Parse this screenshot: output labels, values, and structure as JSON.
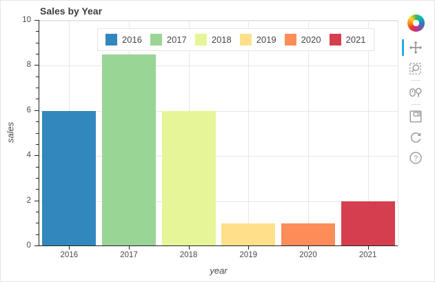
{
  "title": "Sales by Year",
  "chart_data": {
    "type": "bar",
    "title": "Sales by Year",
    "categories": [
      "2016",
      "2017",
      "2018",
      "2019",
      "2020",
      "2021"
    ],
    "values": [
      6,
      8.5,
      6,
      1,
      1,
      2
    ],
    "bar_colors": [
      "#3288bd",
      "#99d594",
      "#e6f598",
      "#fee08b",
      "#fc8d59",
      "#d53e4f"
    ],
    "xlabel": "year",
    "ylabel": "sales",
    "ylim": [
      0,
      10
    ],
    "y_major_ticks": [
      0,
      2,
      4,
      6,
      8,
      10
    ],
    "y_minor_step": 0.5,
    "grid": true,
    "legend_position": "top-center"
  },
  "axes": {
    "y_tick_labels": [
      "0",
      "2",
      "4",
      "6",
      "8",
      "10"
    ],
    "x_tick_labels": [
      "2016",
      "2017",
      "2018",
      "2019",
      "2020",
      "2021"
    ]
  },
  "legend": {
    "items": [
      {
        "label": "2016",
        "color": "#3288bd"
      },
      {
        "label": "2017",
        "color": "#99d594"
      },
      {
        "label": "2018",
        "color": "#e6f598"
      },
      {
        "label": "2019",
        "color": "#fee08b"
      },
      {
        "label": "2020",
        "color": "#fc8d59"
      },
      {
        "label": "2021",
        "color": "#d53e4f"
      }
    ]
  },
  "toolbar": {
    "logo_icon": "bokeh-logo",
    "active_tool": "pan",
    "active_color": "#26aae1",
    "icon_color": "#969696",
    "tools": [
      {
        "icon": "pan-icon",
        "active": true,
        "separator_before": false
      },
      {
        "icon": "box-zoom-icon",
        "active": false,
        "separator_before": false
      },
      {
        "icon": "wheel-zoom-icon",
        "active": false,
        "separator_before": true
      },
      {
        "icon": "save-icon",
        "active": false,
        "separator_before": true
      },
      {
        "icon": "reset-icon",
        "active": false,
        "separator_before": false
      },
      {
        "icon": "help-icon",
        "active": false,
        "separator_before": false
      }
    ]
  },
  "colors": {
    "grid_line": "#e6e6e6",
    "axis_line": "#1f1f1f",
    "text": "#444444",
    "plot_background": "#ffffff"
  }
}
